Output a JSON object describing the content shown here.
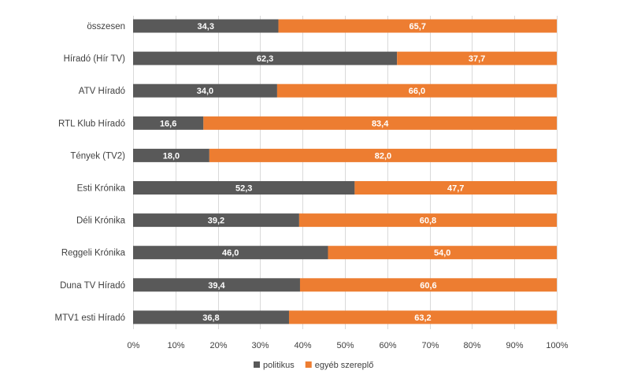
{
  "chart_data": {
    "type": "bar",
    "orientation": "horizontal",
    "stacked": "percent",
    "categories": [
      "összesen",
      "Híradó (Hír TV)",
      "ATV Híradó",
      "RTL Klub Híradó",
      "Tények (TV2)",
      "Esti Krónika",
      "Déli Krónika",
      "Reggeli Krónika",
      "Duna TV Híradó",
      "MTV1 esti Híradó"
    ],
    "series": [
      {
        "name": "politikus",
        "color": "#595959",
        "values": [
          34.3,
          62.3,
          34.0,
          16.6,
          18.0,
          52.3,
          39.2,
          46.0,
          39.4,
          36.8
        ],
        "labels": [
          "34,3",
          "62,3",
          "34,0",
          "16,6",
          "18,0",
          "52,3",
          "39,2",
          "46,0",
          "39,4",
          "36,8"
        ]
      },
      {
        "name": "egyéb szereplő",
        "color": "#ed7d31",
        "values": [
          65.7,
          37.7,
          66.0,
          83.4,
          82.0,
          47.7,
          60.8,
          54.0,
          60.6,
          63.2
        ],
        "labels": [
          "65,7",
          "37,7",
          "66,0",
          "83,4",
          "82,0",
          "47,7",
          "60,8",
          "54,0",
          "60,6",
          "63,2"
        ]
      }
    ],
    "xlim": [
      0,
      100
    ],
    "xticks": [
      "0%",
      "10%",
      "20%",
      "30%",
      "40%",
      "50%",
      "60%",
      "70%",
      "80%",
      "90%",
      "100%"
    ],
    "grid": true,
    "legend_position": "bottom-center",
    "title": "",
    "xlabel": "",
    "ylabel": ""
  }
}
